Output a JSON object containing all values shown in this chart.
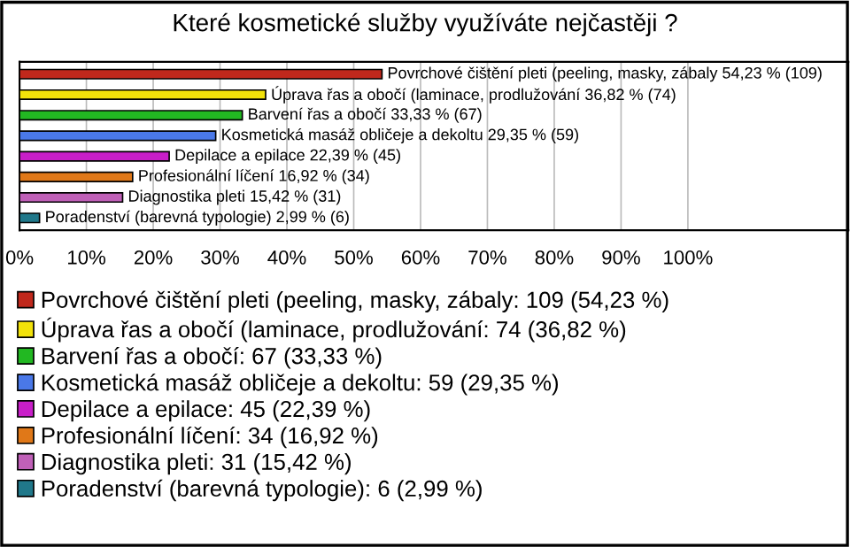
{
  "chart_data": {
    "type": "bar",
    "orientation": "horizontal",
    "stacked": true,
    "title": "Které kosmetické služby využíváte nejčastěji ?",
    "categories": [
      null,
      null,
      null,
      null,
      null,
      null,
      null,
      null
    ],
    "series": [
      {
        "name": "Povrchové čištění pleti (peeling, masky, zábaly: 109 (54,23 %)",
        "color": "#c0281c",
        "values": [
          54.23,
          null,
          null,
          null,
          null,
          null,
          null,
          null
        ],
        "value_labels": [
          "Povrchové čištění pleti (peeling, masky, zábaly 54,23 % (109)",
          null,
          null,
          null,
          null,
          null,
          null,
          null
        ]
      },
      {
        "name": "Úprava řas a obočí (laminace, prodlužování: 74 (36,82 %)",
        "color": "#f2e20a",
        "values": [
          null,
          36.82,
          null,
          null,
          null,
          null,
          null,
          null
        ],
        "value_labels": [
          null,
          "Úprava řas a obočí (laminace, prodlužování 36,82 % (74)",
          null,
          null,
          null,
          null,
          null,
          null
        ]
      },
      {
        "name": "Barvení řas a obočí: 67 (33,33 %)",
        "color": "#22b822",
        "values": [
          null,
          null,
          33.33,
          null,
          null,
          null,
          null,
          null
        ],
        "value_labels": [
          null,
          null,
          "Barvení řas a obočí 33,33 % (67)",
          null,
          null,
          null,
          null,
          null
        ]
      },
      {
        "name": "Kosmetická masáž obličeje a dekoltu: 59 (29,35 %)",
        "color": "#4a78e8",
        "values": [
          null,
          null,
          null,
          29.35,
          null,
          null,
          null,
          null
        ],
        "value_labels": [
          null,
          null,
          null,
          "Kosmetická masáž obličeje a dekoltu 29,35 % (59)",
          null,
          null,
          null,
          null
        ]
      },
      {
        "name": "Depilace a epilace: 45 (22,39 %)",
        "color": "#c81ec8",
        "values": [
          null,
          null,
          null,
          null,
          22.39,
          null,
          null,
          null
        ],
        "value_labels": [
          null,
          null,
          null,
          null,
          "Depilace a epilace 22,39 % (45)",
          null,
          null,
          null
        ]
      },
      {
        "name": "Profesionální líčení: 34 (16,92 %)",
        "color": "#e07818",
        "values": [
          null,
          null,
          null,
          null,
          null,
          16.92,
          null,
          null
        ],
        "value_labels": [
          null,
          null,
          null,
          null,
          null,
          "Profesionální líčení 16,92 % (34)",
          null,
          null
        ]
      },
      {
        "name": "Diagnostika pleti: 31 (15,42 %)",
        "color": "#c060b8",
        "values": [
          null,
          null,
          null,
          null,
          null,
          null,
          15.42,
          null
        ],
        "value_labels": [
          null,
          null,
          null,
          null,
          null,
          null,
          "Diagnostika pleti 15,42 % (31)",
          null
        ]
      },
      {
        "name": "Poradenství (barevná typologie): 6 (2,99 %)",
        "color": "#20788a",
        "values": [
          null,
          null,
          null,
          null,
          null,
          null,
          null,
          2.99
        ],
        "value_labels": [
          null,
          null,
          null,
          null,
          null,
          null,
          null,
          "Poradenství (barevná typologie) 2,99 % (6)"
        ]
      }
    ],
    "xlim": [
      0,
      124
    ],
    "xticks": [
      {
        "value": 0,
        "label": "0%"
      },
      {
        "value": 10,
        "label": "10%"
      },
      {
        "value": 20,
        "label": "20%"
      },
      {
        "value": 30,
        "label": "30%"
      },
      {
        "value": 40,
        "label": "40%"
      },
      {
        "value": 50,
        "label": "50%"
      },
      {
        "value": 60,
        "label": "60%"
      },
      {
        "value": 70,
        "label": "70%"
      },
      {
        "value": 80,
        "label": "80%"
      },
      {
        "value": 90,
        "label": "90%"
      },
      {
        "value": 100,
        "label": "100%"
      }
    ],
    "grid": "x",
    "legend": "bottom",
    "tick_labels": "x"
  }
}
